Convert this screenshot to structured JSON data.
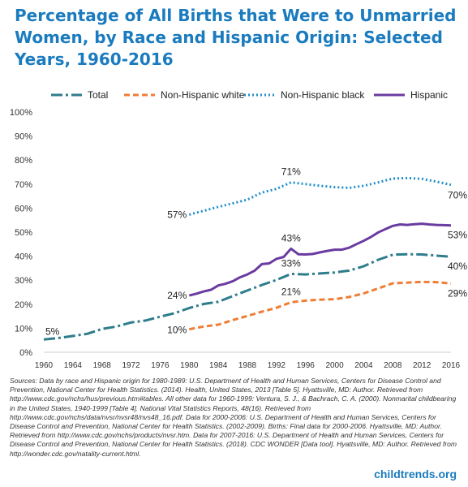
{
  "title": "Percentage of All Births that Were to Unmarried Women, by Race and Hispanic Origin: Selected Years, 1960-2016",
  "legend": [
    {
      "label": "Total"
    },
    {
      "label": "Non-Hispanic white"
    },
    {
      "label": "Non-Hispanic black"
    },
    {
      "label": "Hispanic"
    }
  ],
  "sources": "Sources: Data by race and Hispanic origin for 1980-1989: U.S. Department of Health and Human Services, Centers for Disease Control and Prevention, National Center for Health Statistics. (2014). Health, United States, 2013 [Table 5]. Hyattsville, MD: Author. Retrieved from http://www.cdc.gov/nchs/hus/previous.htm#tables. All other data for 1960-1999: Ventura, S. J., & Bachrach, C. A. (2000). Nonmarital childbearing in the United States, 1940-1999 [Table 4]. National Vital Statistics Reports, 48(16). Retrieved from http://www.cdc.gov/nchs/data/nvsr/nvsr48/nvs48_16.pdf. Data for 2000-2006: U.S. Department of Health and Human Services, Centers for Disease Control and Prevention, National Center for Health Statistics. (2002-2009). Births: Final data for 2000-2006. Hyattsville, MD: Author. Retrieved from http://www.cdc.gov/nchs/products/nvsr.htm. Data for 2007-2016: U.S. Department of Health and Human Services, Centers for Disease Control and Prevention, National Center for Health Statistics. (2018). CDC WONDER [Data tool]. Hyattsville, MD: Author. Retrieved from http://wonder.cdc.gov/natality-current.html.",
  "brand": "childtrends.org",
  "chart_data": {
    "type": "line",
    "title": "Percentage of All Births that Were to Unmarried Women, by Race and Hispanic Origin: Selected Years, 1960-2016",
    "xlabel": "",
    "ylabel": "",
    "xlim": [
      1960,
      2016
    ],
    "ylim": [
      0,
      100
    ],
    "x_ticks": [
      1960,
      1964,
      1968,
      1972,
      1976,
      1980,
      1984,
      1988,
      1992,
      1996,
      2000,
      2004,
      2008,
      2012,
      2016
    ],
    "y_ticks": [
      0,
      10,
      20,
      30,
      40,
      50,
      60,
      70,
      80,
      90,
      100
    ],
    "y_tick_suffix": "%",
    "grid": false,
    "legend_position": "top",
    "series": [
      {
        "name": "Total",
        "color": "#2e7d8c",
        "style": "long-dash",
        "x": [
          1960,
          1962,
          1964,
          1966,
          1968,
          1970,
          1972,
          1974,
          1976,
          1978,
          1980,
          1982,
          1984,
          1986,
          1988,
          1990,
          1992,
          1994,
          1996,
          1998,
          2000,
          2002,
          2004,
          2006,
          2008,
          2010,
          2012,
          2014,
          2016
        ],
        "y": [
          5.3,
          5.9,
          6.8,
          7.7,
          9.7,
          10.7,
          12.4,
          13.2,
          14.8,
          16.3,
          18.4,
          20.1,
          21.0,
          23.4,
          25.7,
          28.0,
          30.1,
          32.6,
          32.4,
          32.8,
          33.2,
          34.0,
          35.8,
          38.5,
          40.6,
          40.8,
          40.7,
          40.2,
          39.8
        ]
      },
      {
        "name": "Non-Hispanic white",
        "color": "#ef7d35",
        "style": "dash",
        "x": [
          1980,
          1982,
          1984,
          1986,
          1988,
          1990,
          1992,
          1994,
          1996,
          1998,
          2000,
          2002,
          2004,
          2006,
          2008,
          2010,
          2012,
          2014,
          2016
        ],
        "y": [
          9.6,
          10.7,
          11.5,
          13.4,
          15.1,
          16.9,
          18.5,
          20.8,
          21.5,
          21.9,
          22.1,
          23.0,
          24.5,
          26.6,
          28.7,
          29.0,
          29.3,
          29.2,
          28.6
        ]
      },
      {
        "name": "Non-Hispanic black",
        "color": "#1f8fc9",
        "style": "dot",
        "x": [
          1980,
          1982,
          1984,
          1986,
          1988,
          1990,
          1992,
          1994,
          1996,
          1998,
          2000,
          2002,
          2004,
          2006,
          2008,
          2010,
          2012,
          2014,
          2016
        ],
        "y": [
          57.3,
          58.9,
          60.5,
          62.0,
          63.5,
          66.5,
          68.0,
          70.7,
          70.0,
          69.3,
          68.7,
          68.4,
          69.3,
          70.7,
          72.3,
          72.5,
          72.2,
          71.0,
          69.7
        ]
      },
      {
        "name": "Hispanic",
        "color": "#6a3ba0",
        "style": "solid",
        "x": [
          1980,
          1981,
          1982,
          1983,
          1984,
          1985,
          1986,
          1987,
          1988,
          1989,
          1990,
          1991,
          1992,
          1993,
          1994,
          1995,
          1996,
          1997,
          1998,
          1999,
          2000,
          2001,
          2002,
          2003,
          2004,
          2005,
          2006,
          2007,
          2008,
          2009,
          2010,
          2011,
          2012,
          2013,
          2014,
          2015,
          2016
        ],
        "y": [
          23.6,
          24.4,
          25.3,
          26.0,
          27.8,
          28.5,
          29.6,
          31.2,
          32.4,
          34.0,
          36.7,
          37.0,
          38.9,
          39.7,
          43.1,
          40.8,
          40.7,
          40.9,
          41.6,
          42.2,
          42.7,
          42.7,
          43.5,
          45.0,
          46.4,
          48.0,
          49.9,
          51.3,
          52.6,
          53.2,
          53.0,
          53.3,
          53.5,
          53.2,
          53.0,
          52.9,
          52.8
        ]
      }
    ],
    "annotations": [
      {
        "text": "5%",
        "x": 1960,
        "y": 5.3,
        "series": "Total"
      },
      {
        "text": "10%",
        "x": 1980,
        "y": 9.6,
        "series": "Non-Hispanic white"
      },
      {
        "text": "24%",
        "x": 1980,
        "y": 23.6,
        "series": "Hispanic"
      },
      {
        "text": "57%",
        "x": 1980,
        "y": 57.3,
        "series": "Non-Hispanic black"
      },
      {
        "text": "71%",
        "x": 1994,
        "y": 70.7,
        "series": "Non-Hispanic black"
      },
      {
        "text": "43%",
        "x": 1994,
        "y": 43.1,
        "series": "Hispanic"
      },
      {
        "text": "33%",
        "x": 1994,
        "y": 32.6,
        "series": "Total"
      },
      {
        "text": "21%",
        "x": 1994,
        "y": 20.8,
        "series": "Non-Hispanic white"
      },
      {
        "text": "70%",
        "x": 2016,
        "y": 69.7,
        "series": "Non-Hispanic black"
      },
      {
        "text": "53%",
        "x": 2016,
        "y": 52.8,
        "series": "Hispanic"
      },
      {
        "text": "40%",
        "x": 2016,
        "y": 39.8,
        "series": "Total"
      },
      {
        "text": "29%",
        "x": 2016,
        "y": 28.6,
        "series": "Non-Hispanic white"
      }
    ]
  }
}
